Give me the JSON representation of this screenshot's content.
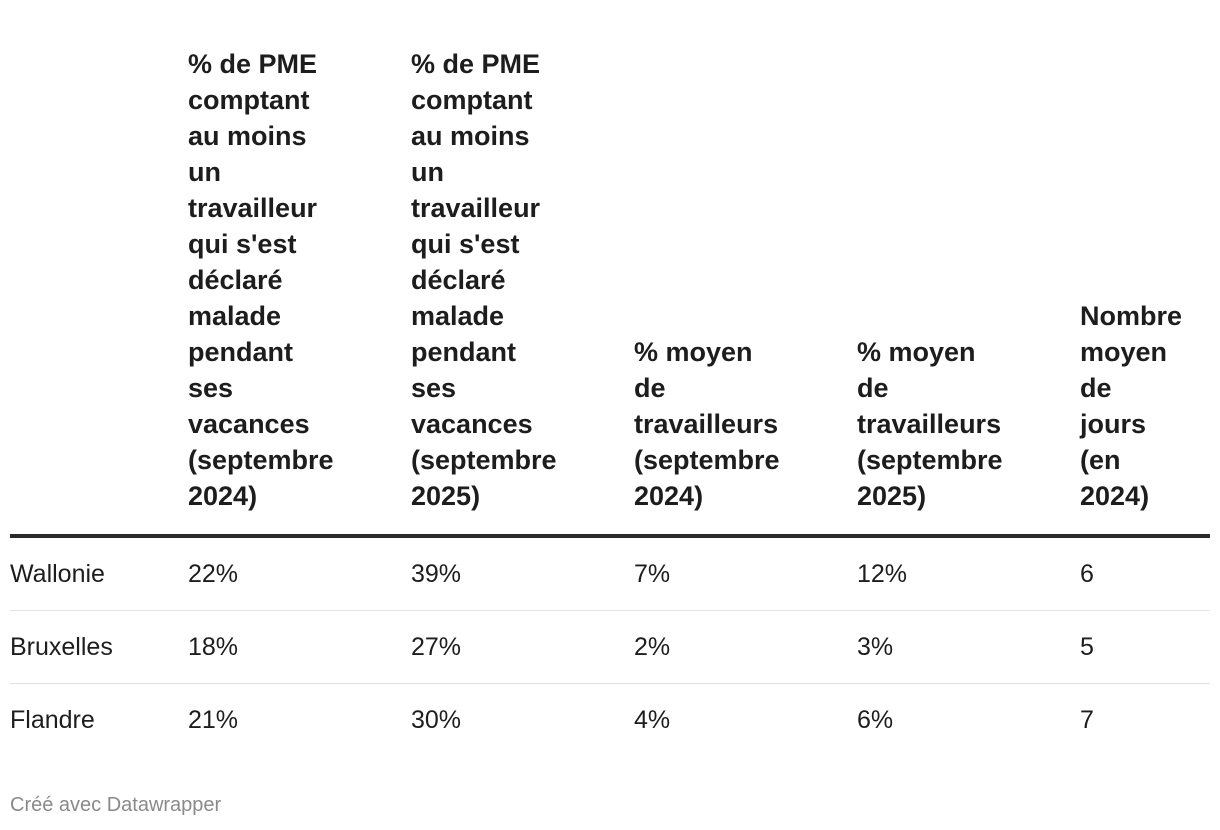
{
  "chart_data": {
    "type": "table",
    "columns": [
      "",
      "% de PME comptant au moins un travailleur qui s'est déclaré malade pendant ses vacances (septembre 2024)",
      "% de PME comptant au moins un travailleur qui s'est déclaré malade pendant ses vacances (septembre 2025)",
      "% moyen de travailleurs (septembre 2024)",
      "% moyen de travailleurs (septembre 2025)",
      "Nombre moyen de jours (en 2024)"
    ],
    "rows": [
      [
        "Wallonie",
        "22%",
        "39%",
        "7%",
        "12%",
        "6"
      ],
      [
        "Bruxelles",
        "18%",
        "27%",
        "2%",
        "3%",
        "5"
      ],
      [
        "Flandre",
        "21%",
        "30%",
        "4%",
        "6%",
        "7"
      ]
    ]
  },
  "header_lines": {
    "col1": [
      "% de PME",
      "comptant",
      "au moins",
      "un",
      "travailleur",
      "qui s'est",
      "déclaré",
      "malade",
      "pendant",
      "ses",
      "vacances",
      "(septembre",
      "2024)"
    ],
    "col2": [
      "% de PME",
      "comptant",
      "au moins",
      "un",
      "travailleur",
      "qui s'est",
      "déclaré",
      "malade",
      "pendant",
      "ses",
      "vacances",
      "(septembre",
      "2025)"
    ],
    "col3": [
      "% moyen",
      "de",
      "travailleurs",
      "(septembre",
      "2024)"
    ],
    "col4": [
      "% moyen",
      "de",
      "travailleurs",
      "(septembre",
      "2025)"
    ],
    "col5": [
      "Nombre",
      "moyen",
      "de",
      "jours",
      "(en",
      "2024)"
    ]
  },
  "footer": {
    "credit": "Créé avec Datawrapper"
  }
}
